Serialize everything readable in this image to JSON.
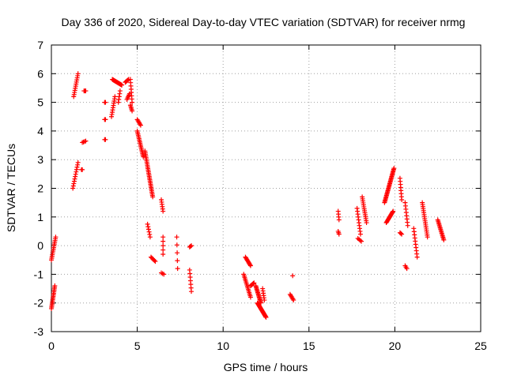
{
  "chart_data": {
    "type": "scatter",
    "title": "Day 336 of 2020, Sidereal Day-to-day VTEC variation (SDTVAR) for receiver nrmg",
    "xlabel": "GPS time / hours",
    "ylabel": "SDTVAR / TECUs",
    "xlim": [
      0,
      25
    ],
    "ylim": [
      -3,
      7
    ],
    "x_ticks": [
      0,
      5,
      10,
      15,
      20,
      25
    ],
    "y_ticks": [
      -3,
      -2,
      -1,
      0,
      1,
      2,
      3,
      4,
      5,
      6,
      7
    ],
    "grid": true,
    "marker": "+",
    "marker_color": "#ff0000",
    "segments": [
      {
        "x0": 0.0,
        "y0": -0.5,
        "x1": 0.25,
        "y1": 0.3,
        "n": 14
      },
      {
        "x0": 0.0,
        "y0": -2.2,
        "x1": 0.2,
        "y1": -1.4,
        "n": 16
      },
      {
        "x0": 1.25,
        "y0": 2.0,
        "x1": 1.55,
        "y1": 2.9,
        "n": 12
      },
      {
        "x0": 1.3,
        "y0": 5.2,
        "x1": 1.55,
        "y1": 6.0,
        "n": 12
      },
      {
        "x0": 1.75,
        "y0": 2.65,
        "x1": 1.8,
        "y1": 2.65,
        "n": 2
      },
      {
        "x0": 1.8,
        "y0": 3.6,
        "x1": 2.0,
        "y1": 3.65,
        "n": 4
      },
      {
        "x0": 1.9,
        "y0": 5.4,
        "x1": 2.0,
        "y1": 5.4,
        "n": 3
      },
      {
        "x0": 3.1,
        "y0": 5.0,
        "x1": 3.15,
        "y1": 5.0,
        "n": 2
      },
      {
        "x0": 3.1,
        "y0": 4.4,
        "x1": 3.15,
        "y1": 4.4,
        "n": 2
      },
      {
        "x0": 3.1,
        "y0": 3.7,
        "x1": 3.15,
        "y1": 3.7,
        "n": 2
      },
      {
        "x0": 3.5,
        "y0": 4.5,
        "x1": 3.7,
        "y1": 5.2,
        "n": 10
      },
      {
        "x0": 3.55,
        "y0": 5.8,
        "x1": 4.1,
        "y1": 5.6,
        "n": 18
      },
      {
        "x0": 3.9,
        "y0": 5.0,
        "x1": 4.0,
        "y1": 5.4,
        "n": 5
      },
      {
        "x0": 4.3,
        "y0": 5.7,
        "x1": 4.5,
        "y1": 5.8,
        "n": 6
      },
      {
        "x0": 4.4,
        "y0": 5.1,
        "x1": 4.55,
        "y1": 5.3,
        "n": 5
      },
      {
        "x0": 4.6,
        "y0": 5.8,
        "x1": 4.7,
        "y1": 5.0,
        "n": 8
      },
      {
        "x0": 4.6,
        "y0": 4.9,
        "x1": 4.7,
        "y1": 4.7,
        "n": 5
      },
      {
        "x0": 5.0,
        "y0": 4.4,
        "x1": 5.2,
        "y1": 4.2,
        "n": 6
      },
      {
        "x0": 5.0,
        "y0": 4.0,
        "x1": 5.35,
        "y1": 3.1,
        "n": 18
      },
      {
        "x0": 5.45,
        "y0": 3.3,
        "x1": 5.9,
        "y1": 1.7,
        "n": 30
      },
      {
        "x0": 5.6,
        "y0": 0.75,
        "x1": 5.75,
        "y1": 0.3,
        "n": 6
      },
      {
        "x0": 5.8,
        "y0": -0.4,
        "x1": 6.05,
        "y1": -0.55,
        "n": 6
      },
      {
        "x0": 6.4,
        "y0": 1.6,
        "x1": 6.5,
        "y1": 1.2,
        "n": 6
      },
      {
        "x0": 6.5,
        "y0": 0.3,
        "x1": 6.5,
        "y1": -0.3,
        "n": 5
      },
      {
        "x0": 6.4,
        "y0": -0.95,
        "x1": 6.55,
        "y1": -1.0,
        "n": 3
      },
      {
        "x0": 7.3,
        "y0": 0.3,
        "x1": 7.35,
        "y1": -0.8,
        "n": 5
      },
      {
        "x0": 8.05,
        "y0": -0.05,
        "x1": 8.15,
        "y1": 0.0,
        "n": 3
      },
      {
        "x0": 8.05,
        "y0": -0.85,
        "x1": 8.15,
        "y1": -1.6,
        "n": 7
      },
      {
        "x0": 11.3,
        "y0": -0.4,
        "x1": 11.6,
        "y1": -0.7,
        "n": 10
      },
      {
        "x0": 11.2,
        "y0": -1.0,
        "x1": 11.6,
        "y1": -1.8,
        "n": 16
      },
      {
        "x0": 11.6,
        "y0": -1.4,
        "x1": 11.8,
        "y1": -1.3,
        "n": 6
      },
      {
        "x0": 11.9,
        "y0": -1.4,
        "x1": 12.2,
        "y1": -2.0,
        "n": 16
      },
      {
        "x0": 12.0,
        "y0": -2.0,
        "x1": 12.5,
        "y1": -2.5,
        "n": 24
      },
      {
        "x0": 12.3,
        "y0": -1.5,
        "x1": 12.4,
        "y1": -1.9,
        "n": 6
      },
      {
        "x0": 13.9,
        "y0": -1.7,
        "x1": 14.1,
        "y1": -1.9,
        "n": 6
      },
      {
        "x0": 14.05,
        "y0": -1.05,
        "x1": 14.05,
        "y1": -1.05,
        "n": 1
      },
      {
        "x0": 16.7,
        "y0": 1.2,
        "x1": 16.75,
        "y1": 0.9,
        "n": 4
      },
      {
        "x0": 16.7,
        "y0": 0.5,
        "x1": 16.75,
        "y1": 0.4,
        "n": 3
      },
      {
        "x0": 17.8,
        "y0": 1.3,
        "x1": 18.0,
        "y1": 0.4,
        "n": 10
      },
      {
        "x0": 17.85,
        "y0": 0.25,
        "x1": 18.05,
        "y1": 0.15,
        "n": 4
      },
      {
        "x0": 18.1,
        "y0": 1.7,
        "x1": 18.35,
        "y1": 0.8,
        "n": 14
      },
      {
        "x0": 19.4,
        "y0": 1.5,
        "x1": 19.95,
        "y1": 2.7,
        "n": 30
      },
      {
        "x0": 19.5,
        "y0": 0.8,
        "x1": 19.9,
        "y1": 1.2,
        "n": 14
      },
      {
        "x0": 20.3,
        "y0": 2.35,
        "x1": 20.4,
        "y1": 1.6,
        "n": 8
      },
      {
        "x0": 20.3,
        "y0": 0.45,
        "x1": 20.4,
        "y1": 0.4,
        "n": 3
      },
      {
        "x0": 20.6,
        "y0": 1.5,
        "x1": 20.75,
        "y1": 0.7,
        "n": 8
      },
      {
        "x0": 20.6,
        "y0": -0.7,
        "x1": 20.7,
        "y1": -0.8,
        "n": 3
      },
      {
        "x0": 21.1,
        "y0": 0.6,
        "x1": 21.3,
        "y1": -0.4,
        "n": 10
      },
      {
        "x0": 21.6,
        "y0": 1.5,
        "x1": 21.9,
        "y1": 0.3,
        "n": 18
      },
      {
        "x0": 22.5,
        "y0": 0.9,
        "x1": 22.85,
        "y1": 0.2,
        "n": 16
      }
    ]
  },
  "style": {
    "marker_color": "#ff0000",
    "grid_color": "#a0a0a0",
    "axis_color": "#000000"
  }
}
